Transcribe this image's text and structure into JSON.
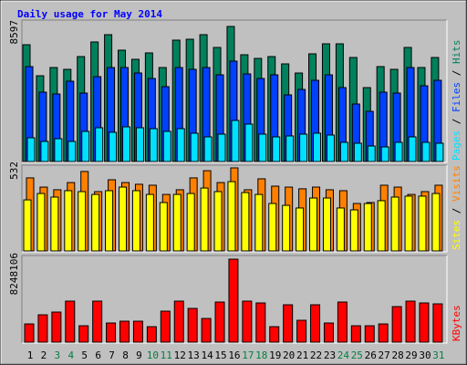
{
  "title": "Daily usage for May 2014",
  "legend_separator": " / ",
  "chart_data": [
    {
      "type": "bar",
      "ylim": [
        0,
        8597
      ],
      "yticks": [
        8597
      ],
      "series": [
        {
          "name": "Hits",
          "color": "#00805c",
          "values": [
            7435,
            5460,
            5983,
            5867,
            6680,
            7610,
            8074,
            7087,
            6506,
            6913,
            5983,
            7726,
            7784,
            8074,
            7261,
            8597,
            6796,
            6564,
            6680,
            6215,
            5634,
            6855,
            7493,
            7493,
            6622,
            4705,
            6041,
            5867,
            7261,
            5983,
            6622
          ]
        },
        {
          "name": "Files",
          "color": "#0040ff",
          "values": [
            6041,
            4415,
            4299,
            5112,
            4357,
            5402,
            5983,
            5983,
            5635,
            5286,
            4763,
            5983,
            5867,
            5983,
            5518,
            6390,
            5577,
            5286,
            5518,
            4241,
            4589,
            5170,
            5518,
            4705,
            3660,
            3195,
            4415,
            4357,
            5983,
            4821,
            5170
          ]
        },
        {
          "name": "Pages",
          "color": "#00e0ff",
          "values": [
            1510,
            1278,
            1452,
            1278,
            1917,
            2149,
            1859,
            2207,
            2149,
            2091,
            1917,
            2091,
            1801,
            1568,
            1743,
            2614,
            2382,
            1743,
            1568,
            1627,
            1743,
            1801,
            1685,
            1220,
            1162,
            988,
            929,
            1220,
            1568,
            1220,
            1162
          ]
        }
      ]
    },
    {
      "type": "bar",
      "ylim": [
        0,
        532
      ],
      "yticks": [
        532
      ],
      "series": [
        {
          "name": "Visits",
          "color": "#ff8000",
          "values": [
            468,
            409,
            392,
            438,
            509,
            380,
            456,
            438,
            427,
            421,
            362,
            392,
            468,
            514,
            438,
            532,
            392,
            462,
            415,
            409,
            398,
            409,
            392,
            386,
            304,
            310,
            421,
            409,
            362,
            380,
            421
          ]
        },
        {
          "name": "Sites",
          "color": "#ffff00",
          "values": [
            327,
            368,
            345,
            386,
            380,
            362,
            386,
            409,
            386,
            362,
            310,
            362,
            368,
            403,
            380,
            444,
            374,
            362,
            304,
            292,
            275,
            339,
            339,
            275,
            263,
            304,
            322,
            345,
            351,
            351,
            368
          ]
        }
      ]
    },
    {
      "type": "bar",
      "ylim": [
        0,
        8248106
      ],
      "yticks": [
        8248106
      ],
      "categories": [
        "1",
        "2",
        "3",
        "4",
        "5",
        "6",
        "7",
        "8",
        "9",
        "10",
        "11",
        "12",
        "13",
        "14",
        "15",
        "16",
        "17",
        "18",
        "19",
        "20",
        "21",
        "22",
        "23",
        "24",
        "25",
        "26",
        "27",
        "28",
        "29",
        "30",
        "31"
      ],
      "category_colors": [
        "#000000",
        "#000000",
        "#008040",
        "#008040",
        "#000000",
        "#000000",
        "#000000",
        "#000000",
        "#000000",
        "#008040",
        "#008040",
        "#000000",
        "#000000",
        "#000000",
        "#000000",
        "#000000",
        "#008040",
        "#008040",
        "#000000",
        "#000000",
        "#000000",
        "#000000",
        "#000000",
        "#008040",
        "#008040",
        "#000000",
        "#000000",
        "#000000",
        "#000000",
        "#000000",
        "#008040"
      ],
      "series": [
        {
          "name": "KBytes",
          "color": "#ff0000",
          "values": [
            1812760,
            2719140,
            2991054,
            4078710,
            1631484,
            4078710,
            1903398,
            2084674,
            2084674,
            1540846,
            3081692,
            4078710,
            3353606,
            2356588,
            3988072,
            8248106,
            4078710,
            3897434,
            1540846,
            3716158,
            2175312,
            3716158,
            1903398,
            3988072,
            1631484,
            1631484,
            1812760,
            3534882,
            4078710,
            3897434,
            3806796
          ]
        }
      ]
    }
  ]
}
